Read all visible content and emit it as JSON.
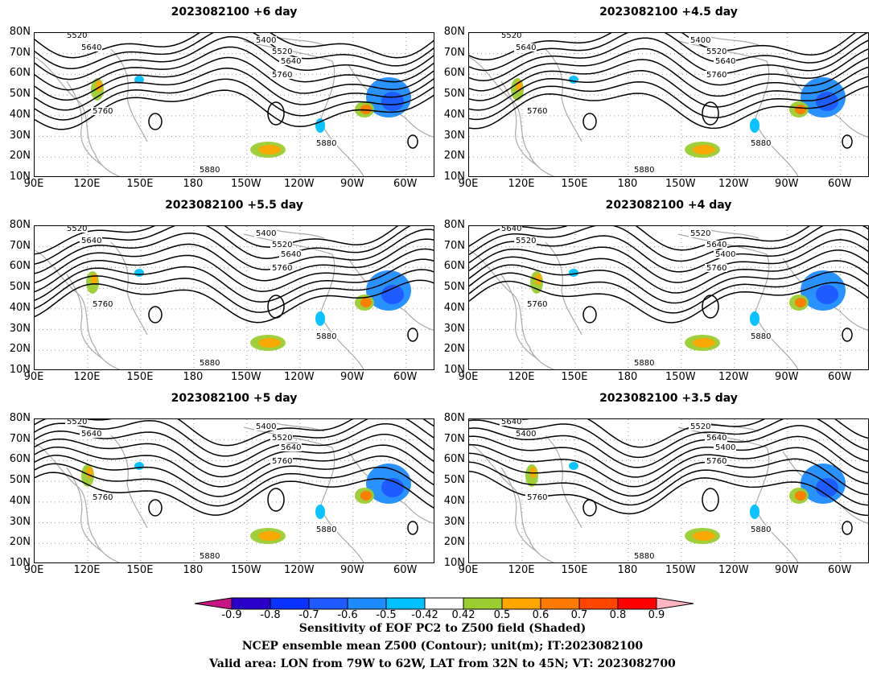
{
  "panels": [
    {
      "title": "2023082100 +6 day",
      "contour_labels": [
        "5520",
        "5640",
        "5400",
        "5520",
        "5640",
        "5760",
        "5760",
        "5880",
        "5880"
      ]
    },
    {
      "title": "2023082100 +4.5 day",
      "contour_labels": [
        "5520",
        "5640",
        "5400",
        "5520",
        "5640",
        "5760",
        "5760",
        "5880",
        "5880"
      ]
    },
    {
      "title": "2023082100 +5.5 day",
      "contour_labels": [
        "5520",
        "5640",
        "5400",
        "5520",
        "5640",
        "5760",
        "5760",
        "5880",
        "5880"
      ]
    },
    {
      "title": "2023082100 +4 day",
      "contour_labels": [
        "5640",
        "5520",
        "5520",
        "5640",
        "5400",
        "5760",
        "5760",
        "5880",
        "5880"
      ]
    },
    {
      "title": "2023082100 +5 day",
      "contour_labels": [
        "5520",
        "5640",
        "5400",
        "5520",
        "5640",
        "5760",
        "5760",
        "5880",
        "5880"
      ]
    },
    {
      "title": "2023082100 +3.5 day",
      "contour_labels": [
        "5640",
        "5400",
        "5520",
        "5640",
        "5400",
        "5760",
        "5760",
        "5880",
        "5880"
      ]
    }
  ],
  "lat_ticks": [
    "80N",
    "70N",
    "60N",
    "50N",
    "40N",
    "30N",
    "20N",
    "10N"
  ],
  "lon_ticks": [
    "90E",
    "120E",
    "150E",
    "180",
    "150W",
    "120W",
    "90W",
    "60W"
  ],
  "colorbar": {
    "labels": [
      "-0.9",
      "-0.8",
      "-0.7",
      "-0.6",
      "-0.5",
      "-0.42",
      "0.42",
      "0.5",
      "0.6",
      "0.7",
      "0.8",
      "0.9"
    ],
    "colors": [
      "#2a00c8",
      "#0a32ff",
      "#1e5aff",
      "#1e8cff",
      "#00c0ff",
      "#ffffff",
      "#9acd32",
      "#ffa500",
      "#ff7a00",
      "#ff4500",
      "#ff0000"
    ],
    "end_low_color": "#c71585",
    "end_high_color": "#ffb6c1"
  },
  "caption": {
    "line1": "Sensitivity of EOF PC2 to Z500 field (Shaded)",
    "line2": "NCEP ensemble mean Z500 (Contour); unit(m); IT:2023082100",
    "line3": "Valid area: LON from 79W to 62W, LAT from 32N to 45N; VT: 2023082700"
  }
}
